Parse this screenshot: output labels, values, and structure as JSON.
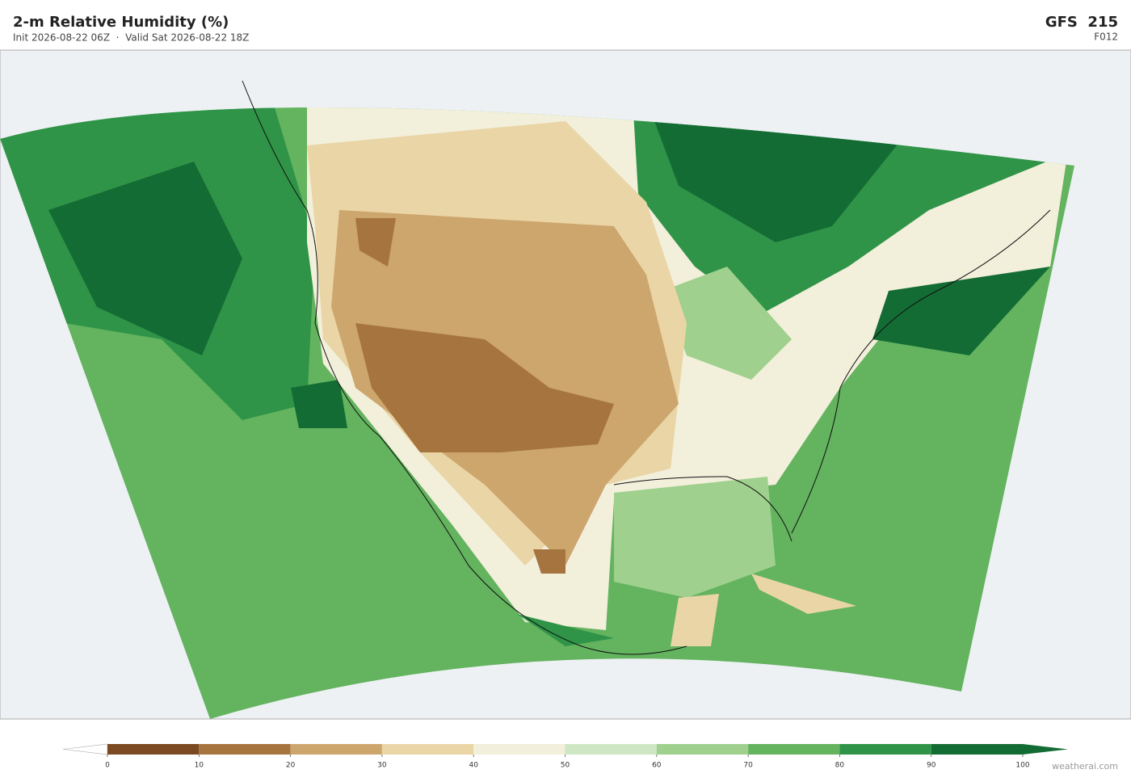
{
  "header": {
    "title": "2-m Relative Humidity  (%)",
    "subtitle": "Init 2026-08-22 06Z  ·  Valid Sat 2026-08-22 18Z",
    "model": "GFS  215",
    "forecast": "F012"
  },
  "colorbar": {
    "lim": [
      0,
      100
    ],
    "ticks": [
      0,
      10,
      20,
      30,
      40,
      50,
      60,
      70,
      80,
      90,
      100
    ],
    "colors": [
      "#7b4a22",
      "#a6743f",
      "#cda66d",
      "#ead5a6",
      "#f2efdb",
      "#cfe6c4",
      "#9fd08e",
      "#63b35f",
      "#2f9447",
      "#146c35"
    ],
    "under_color": "#ffffff",
    "over_color": "#146c35"
  },
  "footer": {
    "credit": "weatherai.com"
  }
}
